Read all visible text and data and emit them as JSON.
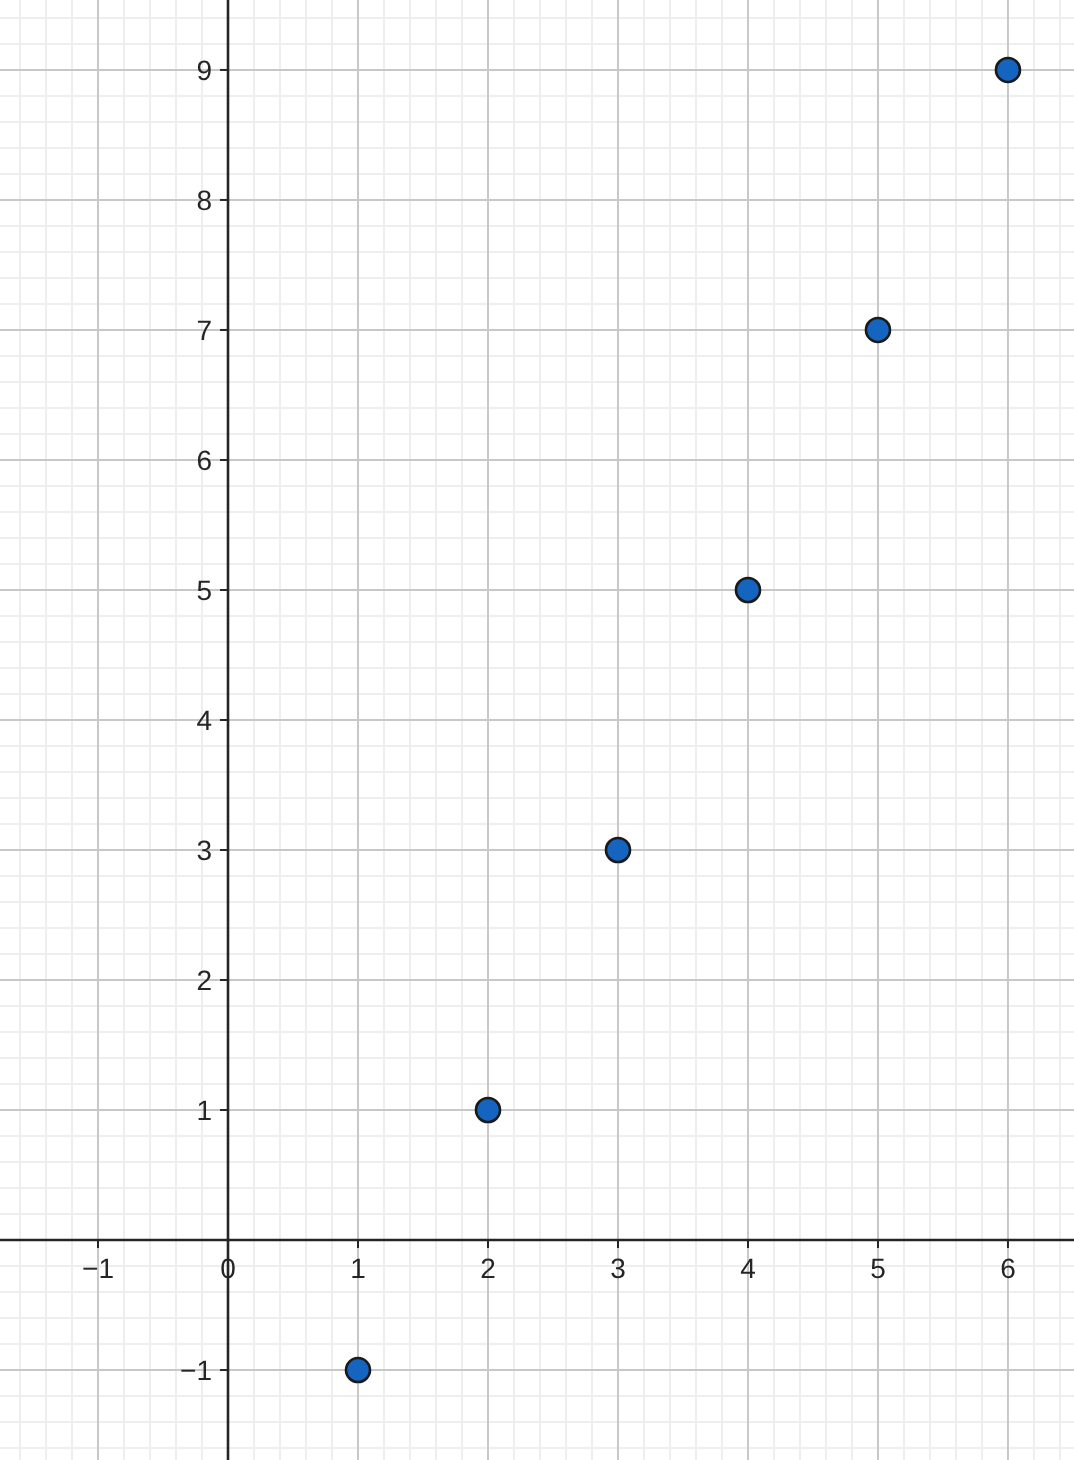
{
  "chart_data": {
    "type": "scatter",
    "x": [
      1,
      2,
      3,
      4,
      5,
      6
    ],
    "values": [
      -1,
      1,
      3,
      5,
      7,
      9
    ],
    "color": "#1565c0",
    "marker": "circle",
    "grid": true,
    "xlim": [
      -1.754,
      6.508
    ],
    "ylim": [
      -1.692,
      9.538
    ],
    "xticks": [
      {
        "value": -1,
        "label": "−1"
      },
      0,
      1,
      2,
      3,
      4,
      5,
      6
    ],
    "yticks": [
      {
        "value": -1,
        "label": "−1"
      },
      1,
      2,
      3,
      4,
      5,
      6,
      7,
      8,
      9
    ]
  }
}
